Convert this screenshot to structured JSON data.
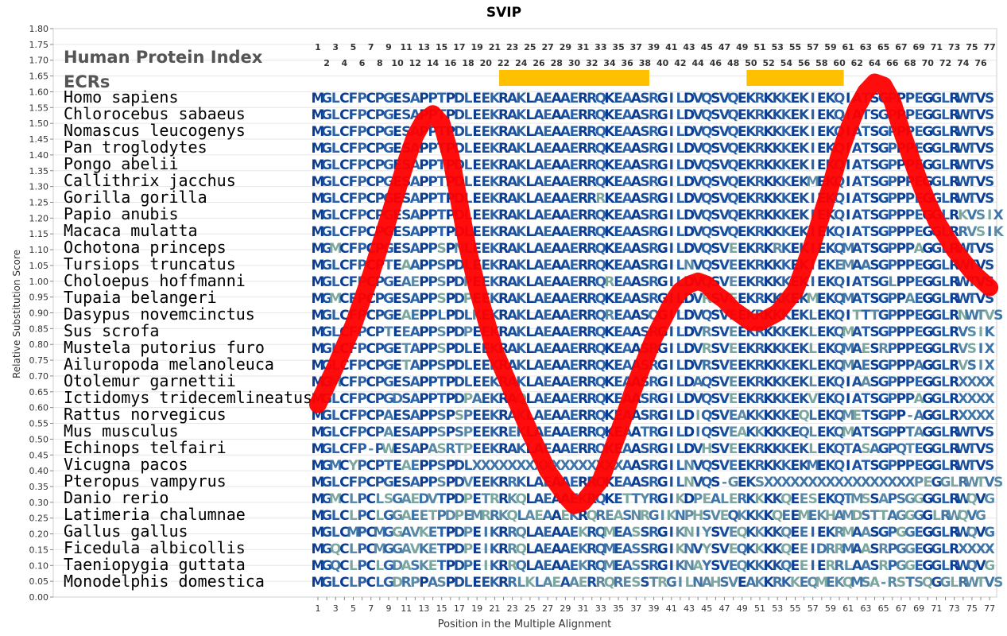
{
  "chart_data": {
    "type": "line",
    "title": "SVIP",
    "xlabel": "Position in the Multiple Alignment",
    "ylabel": "Relative Substitution Score",
    "xlim": [
      1,
      77
    ],
    "ylim": [
      0.0,
      1.8
    ],
    "y_ticks": [
      "0.00",
      "0.05",
      "0.10",
      "0.15",
      "0.20",
      "0.25",
      "0.30",
      "0.35",
      "0.40",
      "0.45",
      "0.50",
      "0.55",
      "0.60",
      "0.65",
      "0.70",
      "0.75",
      "0.80",
      "0.85",
      "0.90",
      "0.95",
      "1.00",
      "1.05",
      "1.10",
      "1.15",
      "1.20",
      "1.25",
      "1.30",
      "1.35",
      "1.40",
      "1.45",
      "1.50",
      "1.55",
      "1.60",
      "1.65",
      "1.70",
      "1.75",
      "1.80"
    ],
    "x_ticks_odd": [
      "1",
      "3",
      "5",
      "7",
      "9",
      "11",
      "13",
      "15",
      "17",
      "19",
      "21",
      "23",
      "25",
      "27",
      "29",
      "31",
      "33",
      "35",
      "37",
      "39",
      "41",
      "43",
      "45",
      "47",
      "49",
      "51",
      "53",
      "55",
      "57",
      "59",
      "61",
      "63",
      "65",
      "67",
      "69",
      "71",
      "73",
      "75",
      "77"
    ],
    "x_ticks_even": [
      "2",
      "4",
      "6",
      "8",
      "10",
      "12",
      "14",
      "16",
      "18",
      "20",
      "22",
      "24",
      "26",
      "28",
      "30",
      "32",
      "34",
      "36",
      "38",
      "40",
      "42",
      "44",
      "46",
      "48",
      "50",
      "52",
      "54",
      "56",
      "58",
      "60",
      "62",
      "64",
      "66",
      "68",
      "70",
      "72",
      "74",
      "76"
    ],
    "header_label": "Human Protein Index",
    "ecr_label": "ECRs",
    "ecrs": [
      [
        22,
        38
      ],
      [
        50,
        60
      ]
    ],
    "ecr_color": "#ffc000",
    "line_color": "#ff0000",
    "series": [
      {
        "x": [
          1,
          3,
          5,
          7,
          9,
          11,
          12,
          13,
          14,
          15,
          16,
          17,
          18,
          19,
          20,
          21,
          23,
          25,
          27,
          29,
          30,
          31,
          33,
          35,
          37,
          39,
          41,
          42,
          43,
          44,
          45,
          46,
          47,
          48,
          49,
          50,
          51,
          53,
          55,
          57,
          59,
          60,
          61,
          62,
          63,
          64,
          65,
          66,
          67,
          68,
          69,
          70,
          71,
          73,
          75,
          77
        ],
        "y": [
          0.61,
          0.73,
          0.86,
          1.02,
          1.2,
          1.38,
          1.46,
          1.51,
          1.53,
          1.5,
          1.4,
          1.25,
          1.1,
          0.98,
          0.88,
          0.78,
          0.65,
          0.52,
          0.4,
          0.32,
          0.29,
          0.3,
          0.37,
          0.52,
          0.68,
          0.82,
          0.93,
          0.97,
          0.99,
          1.0,
          0.99,
          0.96,
          0.94,
          0.91,
          0.89,
          0.87,
          0.87,
          0.9,
          0.97,
          1.12,
          1.3,
          1.4,
          1.48,
          1.55,
          1.6,
          1.63,
          1.62,
          1.57,
          1.48,
          1.4,
          1.32,
          1.25,
          1.19,
          1.1,
          1.03,
          0.98
        ]
      }
    ]
  },
  "alignment": [
    {
      "species": "Homo sapiens",
      "seq": "MGLCFPCPGESAPPTPDLEEKRAKLAEAAERRQKEAASRGILDVQSVQEKRKKKEKIEKQIATSGPPPEGGLRWTVS"
    },
    {
      "species": "Chlorocebus sabaeus",
      "seq": "MGLCFPCPGESAPPTPDLEEKRAKLAEAAERRQKEAASRGILDVQSVQEKRKKKEKIEKQIATSGPPPEGGLRWTVS"
    },
    {
      "species": "Nomascus leucogenys",
      "seq": "MGLCFPCPGESAPPTPDLEEKRAKLAEAAERRQKEAASRGILDVQSVQEKRKKKEKIEKQIATSGPPPEGGLRWTVS"
    },
    {
      "species": "Pan troglodytes",
      "seq": "MGLCFPCPGESAPPTPDLEEKRAKLAEAAERRQKEAASRGILDVQSVQEKRKKKEKIEKQIATSGPPPEGGLRWTVS"
    },
    {
      "species": "Pongo abelii",
      "seq": "MGLCFPCPGESAPPTPDLEEKRAKLAEAAERRQKEAASRGILDVQSVQEKRKKKEKIEKQIATSGPPPEGGLRWTVS"
    },
    {
      "species": "Callithrix jacchus",
      "seq": "MGLCFPCPGESAPPTPDLEEKRAKLAEAAERRQKEAASRGILDVQSVQEKRKKKEKMEKQIATSGPPPEGGLRWTVS"
    },
    {
      "species": "Gorilla gorilla",
      "seq": "MGLCFPCPGESAPPTPDLEEKRAKLAEAAERRRKEAASRGILDVQSVQEKRKKKEKIEKQIATSGPPPEGGLRWTVS"
    },
    {
      "species": "Papio anubis",
      "seq": "MGLCFPCPGESAPPTPDLEEKRAKLAEAAERRQKEAASRGILDVQSVQEKRKKKEKIEKQIATSGPPPEGGLRKVSIX"
    },
    {
      "species": "Macaca mulatta",
      "seq": "MGLCFPCPGESAPPTPDLEEKRAKLAEAAERRQKEAASRGILDVQSVQEKRKKKEKIEKQIATSGPPPEGGLRRVSIK"
    },
    {
      "species": "Ochotona princeps",
      "seq": "MGMCFPCPGESAPPSPNLEEKRAKLAEAAERRQKEAASRGILDVQSVEEKRKRKEKIEKQMATSGPPPAGGLRWTVS"
    },
    {
      "species": "Tursiops truncatus",
      "seq": "MGLCFPCPTEAAPPSPDLEEKRAKLAEAAERRQKEAASRGILNVQSVEEKRKKKEKIEKEMAASGPPPEGGLRWTVS"
    },
    {
      "species": "Choloepus hoffmanni",
      "seq": "MGLCFPCPGEAEPPSPDPEEKRAKLAEAAERRQREAASRGILDVQSVEEKRKKKEKIEKQIATSGLPPEGGLRWTVS"
    },
    {
      "species": "Tupaia belangeri",
      "seq": "MGMCFPCPGESAPPSPDPEEKRAKLAEAAERRQKEAASRGILDVRSVEEKRKKKEKMEKQMATSGPPAEGGLRWTVS"
    },
    {
      "species": "Dasypus novemcinctus",
      "seq": "MGLCFPCPGEAEPPLPDLKEKRAKLAEAAERRQREAASQGILDVQSVEEKRKKKEKLEKQITTTGPPPEGGLRNWTVS"
    },
    {
      "species": "Sus scrofa",
      "seq": "MGLCFPCPTEEAPPSPDPEEKRAKLAEAAERRQKEAASRGILDVRSVEEKRKKKEKLEKQMATSGPPPEGGLRVSIK"
    },
    {
      "species": "Mustela putorius furo",
      "seq": "MGLCFPCPGETAPPSPDLEEKRAKLAEAAERRQKEAASRGILDVRSVEEKRKKKEKLEKQMAESRPPPEGGLRVSIX"
    },
    {
      "species": "Ailuropoda melanoleuca",
      "seq": "MGLCFPCPGETAPPSPDLEEKRAKLAEAAERRQKEAASRGILDVRSVEEKRKKKEKLEKQMAESGPPPAGGLRVSIX"
    },
    {
      "species": "Otolemur garnettii",
      "seq": "MGMCFPCPGESAPPTPDLEEKRAKLAEAAERRQKEAASRGILDAQSVEEKRKKKEKLEKQIAASGPPPEGGLRXXXX"
    },
    {
      "species": "Ictidomys tridecemlineatus",
      "seq": "MGLCFPCPGDSAPPTPDPAEKRAQLAEAAERRQKEAASRGILDVQSVEEKRKKKEKVEKQIATSGPPPAGGLRXXXX"
    },
    {
      "species": "Rattus norvegicus",
      "seq": "MGLCFPCPAESAPPSPSPEEKRAKLAEAAERRQKEAASRGILDIQSVEAKKKKKEQLEKQMETSGPP-AGGLRXXXX"
    },
    {
      "species": "Mus musculus",
      "seq": "MGLCFPCPAESAPPSPSPEEKREKLAEAAERRQKEAATRGILDIQSVEAKKKKKEQLEKQMATSGPPTAGGLRWTVS"
    },
    {
      "species": "Echinops telfairi",
      "seq": "MGLCFP-PWESAPASRTPEEKRAKLAEAAERRQKEAASRGILDVHSVEEKRKKKEKLEKQTASAGPQTEGGLRWTVS"
    },
    {
      "species": "Vicugna pacos",
      "seq": "MGMCYPCPTEAEPPSPDLXXXXXXXXXXXXXXXXXAASRGILNVQSVEEKRKKKEKMEKQIATSGPPPEGGLRWTVS"
    },
    {
      "species": "Pteropus vampyrus",
      "seq": "MGLCFPCPGESAPPSPDVEEKRRKLAEAAERRQKEAASRGILNVQS-GEKSXXXXXXXXXXXXXXXXXPEGGLRWTVS"
    },
    {
      "species": "Danio rerio",
      "seq": "MGMCLPCLSGAEDVTPDPETRRKQLAEAAEKRQKETTYRGIKDPEALERKKKKQEESEKQTMSSAPSGGGGLRWQVG"
    },
    {
      "species": "Latimeria chalumnae",
      "seq": "MGLCLPCLGGAEETPDPEMRRKQLAEAAEKRQREASNRGIKNPHSVEQKKKKQEEMEKHAMDSTTAGGGGLRWQVG"
    },
    {
      "species": "Gallus gallus",
      "seq": "MGLCMPCMGGAVKETPDPEIKRRQLAEAAEKRQMEASSRGIKNIYSVEQKKKKQEEIEKRMAASGPGGEGGLRWQVG"
    },
    {
      "species": "Ficedula albicollis",
      "seq": "MGQCLPCMGGAVKETPDPEIKRRQLAEAAEKRQMEASSRGIKNVYSVEQKKKKQEEIDRRMAASRPGGEGGLRXXXX"
    },
    {
      "species": "Taeniopygia guttata",
      "seq": "MGQCLPCLGDASKETPDPEIKRRQLAEAAEKRQMEASSRGIKNAYSVEQKKKKQEEIERRLAASRPGGEGGLRWQVG"
    },
    {
      "species": "Monodelphis domestica",
      "seq": "MGLCLPCLGDRPPASPDLEEKRRLKLAEAAERRQRESSTRGILNAHSVEAKKRKKEQMEKQMSA-RSTSQGGLRWTVS"
    }
  ]
}
